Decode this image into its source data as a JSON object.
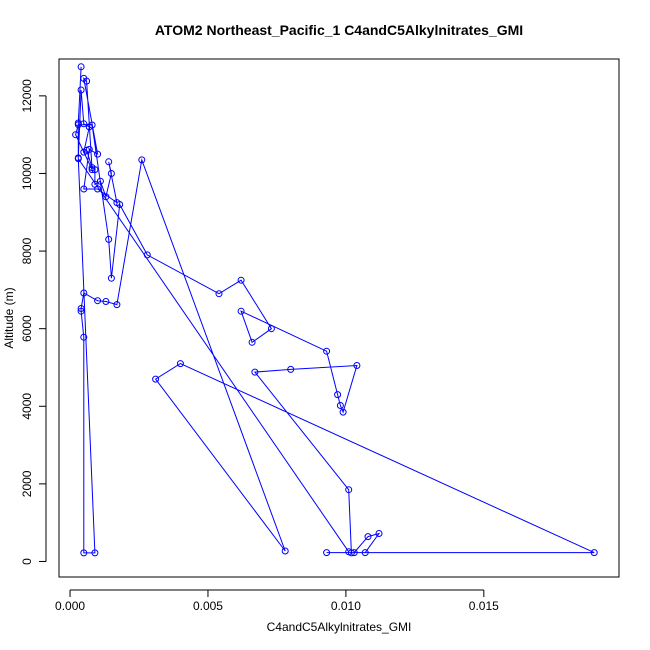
{
  "chart_data": {
    "type": "line",
    "title": "ATOM2 Northeast_Pacific_1 C4andC5Alkylnitrates_GMI",
    "xlabel": "C4andC5Alkylnitrates_GMI",
    "ylabel": "Altitude (m)",
    "xlim": [
      -0.0004,
      0.0199
    ],
    "ylim": [
      -400,
      12950
    ],
    "x_ticks": [
      0.0,
      0.005,
      0.01,
      0.015
    ],
    "x_tick_labels": [
      "0.000",
      "0.005",
      "0.010",
      "0.015"
    ],
    "y_ticks": [
      0,
      2000,
      4000,
      6000,
      8000,
      10000,
      12000
    ],
    "y_tick_labels": [
      "0",
      "2000",
      "4000",
      "6000",
      "8000",
      "10000",
      "12000"
    ],
    "grid": false,
    "series": [
      {
        "color": "#0000ff",
        "marker": "open-circle",
        "points": [
          [
            0.0004,
            12750
          ],
          [
            0.0003,
            11300
          ],
          [
            0.0003,
            10400
          ],
          [
            0.0004,
            12150
          ],
          [
            0.0005,
            11280
          ],
          [
            0.0007,
            11200
          ],
          [
            0.0005,
            10550
          ],
          [
            0.0006,
            10600
          ],
          [
            0.0008,
            10150
          ],
          [
            0.0009,
            10100
          ],
          [
            0.0009,
            9720
          ],
          [
            0.0011,
            9800
          ],
          [
            0.0013,
            9400
          ],
          [
            0.0015,
            10000
          ],
          [
            0.0014,
            10300
          ],
          [
            0.0017,
            9250
          ],
          [
            0.001,
            9600
          ],
          [
            0.0005,
            9600
          ],
          [
            0.0007,
            10620
          ],
          [
            0.001,
            10500
          ],
          [
            0.0005,
            12450
          ],
          [
            0.0006,
            12380
          ],
          [
            0.0008,
            10100
          ],
          [
            0.0002,
            11000
          ],
          [
            0.0003,
            11260
          ],
          [
            0.0008,
            11250
          ],
          [
            0.0014,
            8300
          ],
          [
            0.0015,
            7300
          ],
          [
            0.0018,
            9200
          ],
          [
            0.0028,
            7900
          ],
          [
            0.0054,
            6900
          ],
          [
            0.0062,
            7250
          ],
          [
            0.0073,
            6000
          ],
          [
            0.0066,
            5650
          ],
          [
            0.0062,
            6450
          ],
          [
            0.0093,
            5420
          ],
          [
            0.0097,
            4300
          ],
          [
            0.0098,
            4020
          ],
          [
            0.0099,
            3850
          ],
          [
            0.0104,
            5050
          ],
          [
            0.008,
            4950
          ],
          [
            0.0067,
            4880
          ],
          [
            0.0101,
            1850
          ],
          [
            0.0102,
            220
          ],
          [
            0.0103,
            230
          ],
          [
            0.0108,
            640
          ],
          [
            0.0112,
            720
          ],
          [
            0.0107,
            230
          ],
          [
            0.0093,
            230
          ],
          [
            0.019,
            230
          ],
          [
            0.004,
            5100
          ],
          [
            0.0031,
            4700
          ],
          [
            0.0078,
            270
          ],
          [
            0.0026,
            10350
          ],
          [
            0.0017,
            6620
          ],
          [
            0.0013,
            6700
          ],
          [
            0.001,
            6720
          ],
          [
            0.0005,
            6920
          ],
          [
            0.0004,
            6520
          ],
          [
            0.0004,
            6450
          ],
          [
            0.0005,
            5780
          ],
          [
            0.0005,
            220
          ],
          [
            0.0009,
            220
          ],
          [
            0.0003,
            10380
          ],
          [
            0.0101,
            250
          ]
        ]
      }
    ]
  }
}
